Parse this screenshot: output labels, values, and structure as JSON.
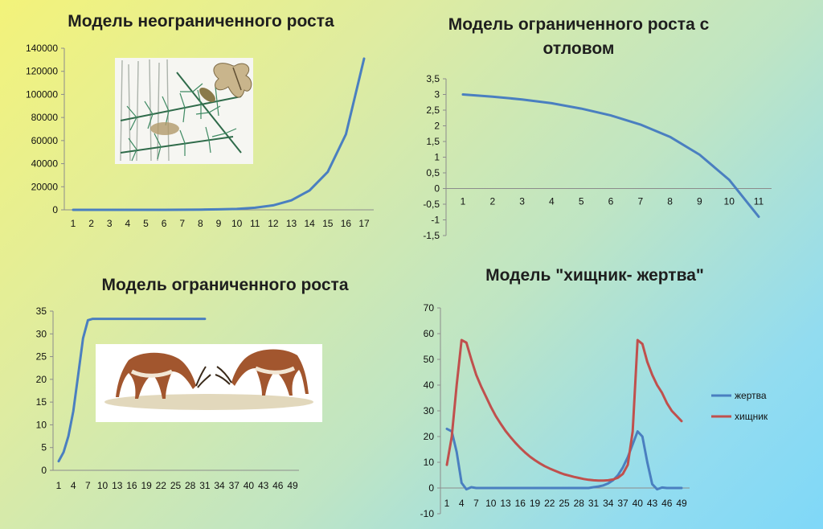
{
  "chart_data": [
    {
      "type": "line",
      "title": "Модель неограниченного роста",
      "x": [
        1,
        2,
        3,
        4,
        5,
        6,
        7,
        8,
        9,
        10,
        11,
        12,
        13,
        14,
        15,
        16,
        17
      ],
      "series": [
        {
          "values": [
            0,
            0,
            0,
            0,
            0,
            0,
            100,
            200,
            400,
            800,
            1800,
            3900,
            8200,
            16800,
            32900,
            65500,
            131000
          ],
          "color": "#4a7fc0"
        }
      ],
      "ylim": [
        0,
        140000
      ],
      "yticks": [
        0,
        20000,
        40000,
        60000,
        80000,
        100000,
        120000,
        140000
      ],
      "ytick_labels": [
        "0",
        "20000",
        "40000",
        "60000",
        "80000",
        "100000",
        "120000",
        "140000"
      ],
      "xtick_labels": [
        "1",
        "2",
        "3",
        "4",
        "5",
        "6",
        "7",
        "8",
        "9",
        "10",
        "11",
        "12",
        "13",
        "14",
        "15",
        "16",
        "17"
      ],
      "grid": false
    },
    {
      "type": "line",
      "title": "Модель ограниченного роста с отловом",
      "x": [
        1,
        2,
        3,
        4,
        5,
        6,
        7,
        8,
        9,
        10,
        11
      ],
      "series": [
        {
          "values": [
            3.0,
            2.93,
            2.84,
            2.72,
            2.55,
            2.33,
            2.04,
            1.65,
            1.08,
            0.28,
            -0.9
          ],
          "color": "#4a7fc0"
        }
      ],
      "ylim": [
        -1.5,
        3.5
      ],
      "yticks": [
        -1.5,
        -1,
        -0.5,
        0,
        0.5,
        1,
        1.5,
        2,
        2.5,
        3,
        3.5
      ],
      "ytick_labels": [
        "-1,5",
        "-1",
        "-0,5",
        "0",
        "0,5",
        "1",
        "1,5",
        "2",
        "2,5",
        "3",
        "3,5"
      ],
      "xtick_labels": [
        "1",
        "2",
        "3",
        "4",
        "5",
        "6",
        "7",
        "8",
        "9",
        "10",
        "11"
      ],
      "grid": false
    },
    {
      "type": "line",
      "title": "Модель ограниченного роста",
      "x": [
        1,
        2,
        3,
        4,
        5,
        6,
        7,
        8,
        9,
        10,
        11,
        12,
        13,
        14,
        15,
        16,
        17,
        18,
        19,
        20,
        21,
        22,
        23,
        24,
        25,
        26,
        27,
        28,
        29,
        30,
        31
      ],
      "series": [
        {
          "values": [
            2,
            4,
            7.5,
            13,
            21,
            29,
            33,
            33.3,
            33.3,
            33.3,
            33.3,
            33.3,
            33.3,
            33.3,
            33.3,
            33.3,
            33.3,
            33.3,
            33.3,
            33.3,
            33.3,
            33.3,
            33.3,
            33.3,
            33.3,
            33.3,
            33.3,
            33.3,
            33.3,
            33.3,
            33.3
          ],
          "color": "#4a7fc0"
        }
      ],
      "ylim": [
        0,
        35
      ],
      "yticks": [
        0,
        5,
        10,
        15,
        20,
        25,
        30,
        35
      ],
      "ytick_labels": [
        "0",
        "5",
        "10",
        "15",
        "20",
        "25",
        "30",
        "35"
      ],
      "xtick_labels": [
        "1",
        "4",
        "7",
        "10",
        "13",
        "16",
        "19",
        "22",
        "25",
        "28",
        "31",
        "34",
        "37",
        "40",
        "43",
        "46",
        "49"
      ],
      "xmax": 49,
      "grid": false
    },
    {
      "type": "line",
      "title": "Модель \"хищник- жертва\"",
      "x": [
        1,
        2,
        3,
        4,
        5,
        6,
        7,
        8,
        9,
        10,
        11,
        12,
        13,
        14,
        15,
        16,
        17,
        18,
        19,
        20,
        21,
        22,
        23,
        24,
        25,
        26,
        27,
        28,
        29,
        30,
        31,
        32,
        33,
        34,
        35,
        36,
        37,
        38,
        39,
        40,
        41,
        42,
        43,
        44,
        45,
        46,
        47,
        48,
        49
      ],
      "series": [
        {
          "name": "жертва",
          "color": "#4a7fc0",
          "values": [
            23,
            22,
            14,
            2,
            -0.5,
            0.3,
            0,
            0,
            0,
            0,
            0,
            0,
            0,
            0,
            0,
            0,
            0,
            0,
            0,
            0,
            0,
            0,
            0,
            0,
            0,
            0,
            0,
            0,
            0,
            0,
            0.3,
            0.6,
            1,
            1.8,
            3,
            5,
            8,
            12,
            17,
            22,
            20,
            10,
            1.5,
            -0.5,
            0.2,
            0,
            0,
            0,
            0
          ]
        },
        {
          "name": "хищник",
          "color": "#c0504d",
          "values": [
            9,
            20,
            40,
            57.5,
            56.5,
            50,
            44,
            39.5,
            35.5,
            31.5,
            28,
            25,
            22.2,
            19.8,
            17.6,
            15.6,
            13.8,
            12.2,
            10.8,
            9.6,
            8.5,
            7.6,
            6.8,
            6,
            5.3,
            4.8,
            4.3,
            3.9,
            3.5,
            3.2,
            3,
            2.9,
            2.9,
            3,
            3.3,
            4,
            5.5,
            9,
            22,
            57.5,
            56,
            49,
            44,
            40,
            37,
            33,
            30,
            28,
            26
          ]
        }
      ],
      "ylim": [
        -10,
        70
      ],
      "yticks": [
        -10,
        0,
        10,
        20,
        30,
        40,
        50,
        60,
        70
      ],
      "ytick_labels": [
        "-10",
        "0",
        "10",
        "20",
        "30",
        "40",
        "50",
        "60",
        "70"
      ],
      "xtick_labels": [
        "1",
        "4",
        "7",
        "10",
        "13",
        "16",
        "19",
        "22",
        "25",
        "28",
        "31",
        "34",
        "37",
        "40",
        "43",
        "46",
        "49"
      ],
      "legend": "right",
      "grid": false
    }
  ],
  "photos": [
    "pine-branch-moth-illustration",
    "gazelles-fighting-illustration"
  ]
}
